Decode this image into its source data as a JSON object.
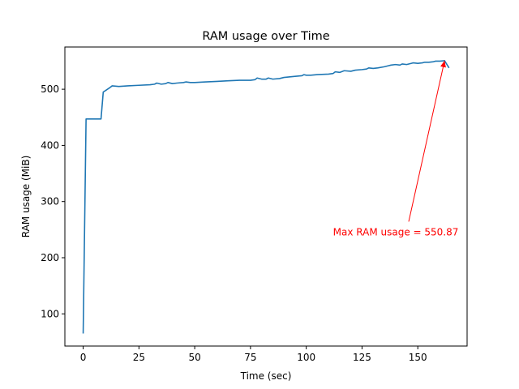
{
  "chart_data": {
    "type": "line",
    "title": "RAM usage over Time",
    "xlabel": "Time (sec)",
    "ylabel": "RAM usage (MiB)",
    "xlim": [
      -8.2,
      172.1
    ],
    "ylim": [
      42.7,
      575.2
    ],
    "xticks": [
      0,
      25,
      50,
      75,
      100,
      125,
      150
    ],
    "yticks": [
      100,
      200,
      300,
      400,
      500
    ],
    "grid": false,
    "line_color": "#1f77b4",
    "series": [
      {
        "x": [
          0,
          1.3,
          2,
          5,
          8,
          9,
          12,
          13,
          16,
          20,
          25,
          30,
          32,
          33,
          35,
          37,
          38,
          40,
          42,
          45,
          46,
          48,
          50,
          55,
          60,
          65,
          70,
          75,
          77,
          78,
          80,
          82,
          83,
          85,
          88,
          90,
          95,
          98,
          99,
          100,
          102,
          105,
          110,
          112,
          113,
          115,
          117,
          120,
          122,
          125,
          127,
          128,
          130,
          132,
          135,
          137,
          138,
          140,
          142,
          143,
          145,
          147,
          148,
          150,
          152,
          153,
          155,
          157,
          158,
          160,
          162,
          164
        ],
        "y": [
          65,
          447,
          447,
          447,
          447,
          495,
          503,
          506,
          505,
          506,
          507,
          508,
          509,
          511,
          509,
          510,
          512,
          510,
          511,
          512,
          513,
          512,
          512,
          513,
          514,
          515,
          516,
          516,
          517,
          520,
          518,
          518,
          520,
          518,
          519,
          521,
          523,
          524,
          526,
          525,
          525,
          526,
          527,
          528,
          531,
          530,
          533,
          532,
          534,
          535,
          536,
          538,
          537,
          538,
          540,
          542,
          543,
          544,
          543,
          545,
          544,
          546,
          547,
          546,
          547,
          548,
          548,
          549,
          550,
          550,
          550.87,
          538
        ]
      }
    ],
    "annotation": {
      "text": "Max RAM usage = 550.87",
      "color": "#ff0000",
      "xy": [
        162,
        550.87
      ],
      "xytext": [
        112,
        247
      ]
    }
  }
}
